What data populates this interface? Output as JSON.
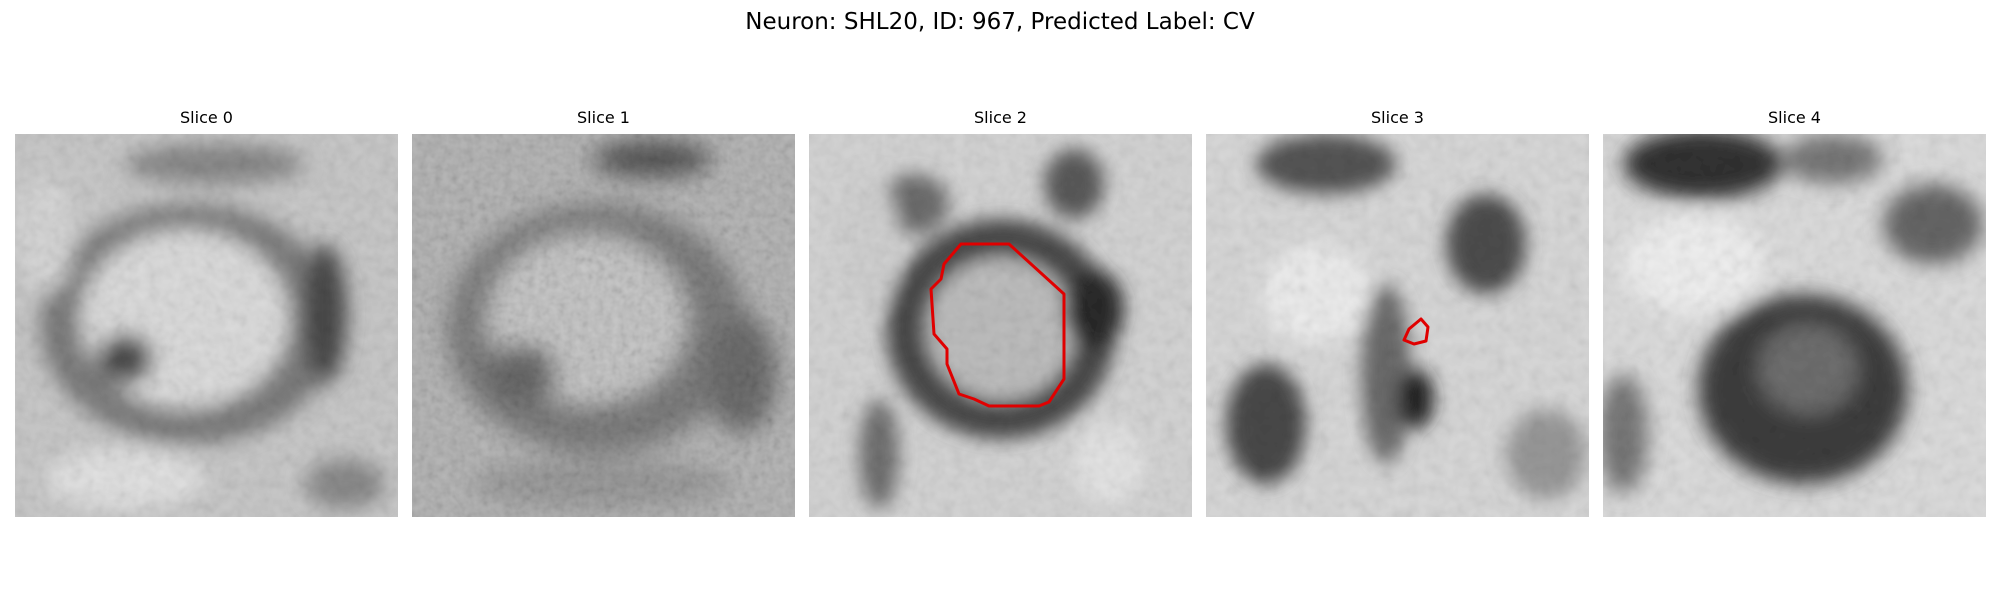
{
  "figure": {
    "title": "Neuron: SHL20, ID: 967, Predicted Label: CV"
  },
  "panels": [
    {
      "title": "Slice 0",
      "has_contour": false
    },
    {
      "title": "Slice 1",
      "has_contour": false
    },
    {
      "title": "Slice 2",
      "has_contour": true
    },
    {
      "title": "Slice 3",
      "has_contour": true
    },
    {
      "title": "Slice 4",
      "has_contour": false
    }
  ],
  "colors": {
    "contour": "#e00000",
    "background": "#ffffff"
  }
}
